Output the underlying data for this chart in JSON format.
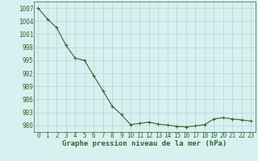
{
  "x": [
    0,
    1,
    2,
    3,
    4,
    5,
    6,
    7,
    8,
    9,
    10,
    11,
    12,
    13,
    14,
    15,
    16,
    17,
    18,
    19,
    20,
    21,
    22,
    23
  ],
  "y": [
    1007.0,
    1004.5,
    1002.5,
    998.5,
    995.5,
    995.0,
    991.5,
    988.0,
    984.5,
    982.5,
    980.2,
    980.5,
    980.8,
    980.3,
    980.1,
    979.8,
    979.7,
    979.9,
    980.2,
    981.5,
    981.8,
    981.5,
    981.3,
    981.0
  ],
  "line_color": "#2d6a2d",
  "marker_color": "#2d6a2d",
  "bg_color": "#d8f0f0",
  "grid_color": "#aacfcf",
  "xlabel": "Graphe pression niveau de la mer (hPa)",
  "ylabel_ticks": [
    980,
    983,
    986,
    989,
    992,
    995,
    998,
    1001,
    1004,
    1007
  ],
  "ylim": [
    978.5,
    1008.5
  ],
  "xlim": [
    -0.5,
    23.5
  ],
  "tick_color": "#2d6a2d",
  "label_color": "#2d6a2d",
  "xlabel_fontsize": 6.5,
  "tick_fontsize": 5.5
}
